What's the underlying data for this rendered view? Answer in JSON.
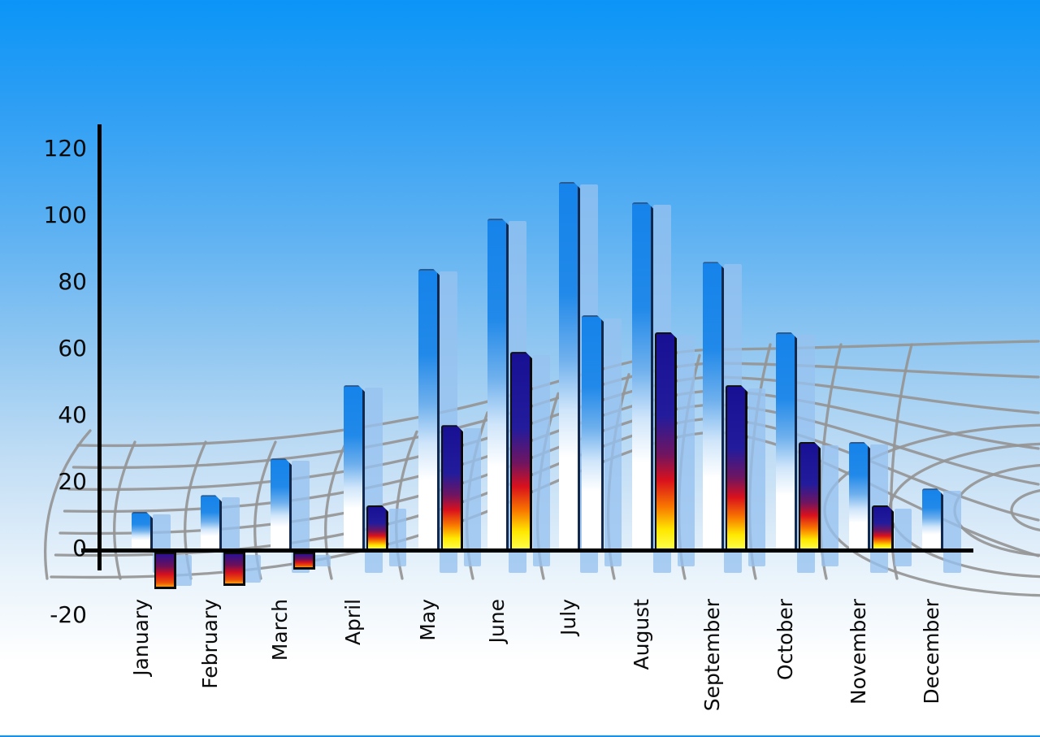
{
  "chart_data": {
    "type": "bar",
    "title": "",
    "xlabel": "",
    "ylabel": "",
    "categories": [
      "January",
      "February",
      "March",
      "April",
      "May",
      "June",
      "July",
      "August",
      "September",
      "October",
      "November",
      "December"
    ],
    "series": [
      {
        "name": "blue",
        "values": [
          11,
          16,
          27,
          49,
          84,
          99,
          110,
          104,
          86,
          65,
          32,
          18
        ]
      },
      {
        "name": "heat",
        "values": [
          -11,
          -10,
          -5,
          13,
          37,
          59,
          70,
          65,
          49,
          32,
          13,
          null
        ]
      }
    ],
    "ylim": [
      -20,
      120
    ],
    "yticks": [
      120,
      100,
      80,
      60,
      40,
      20,
      0,
      -20
    ],
    "legend": "none",
    "grid": "curved gray perspective mesh behind bars",
    "style_exceptions": {
      "July": "second bar rendered with blue gradient instead of heat gradient",
      "December": "no second bar"
    }
  },
  "colors": {
    "sky_top": "#0b95f7",
    "sky_bottom": "#ffffff",
    "bar_blue_top": "#1583ea",
    "bar_blue_bottom": "#ffffff",
    "heat_gradient": [
      "#181094",
      "#d9111d",
      "#f87500",
      "#ffe800"
    ],
    "negative_gradient": [
      "#2a1090",
      "#d5101f",
      "#f8a010"
    ],
    "shadow_bar": "#96c1f0",
    "grid_line": "#959595",
    "axis": "#000000",
    "label_text": "#0a0a0a"
  }
}
